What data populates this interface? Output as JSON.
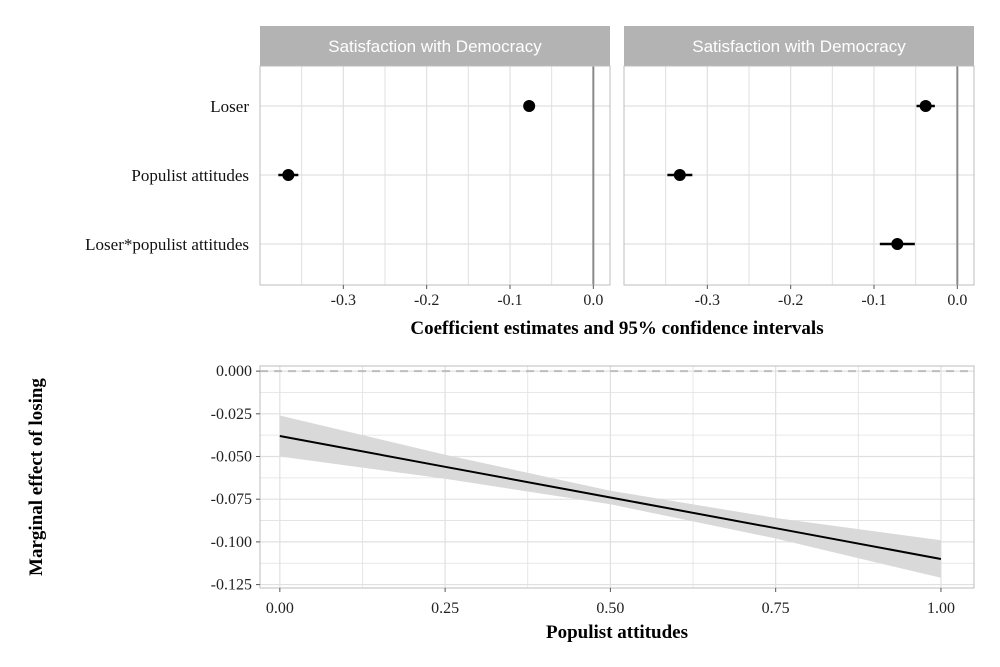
{
  "chart_data": [
    {
      "type": "scatter",
      "title": "Satisfaction with Democracy",
      "categories": [
        "Loser",
        "Populist attitudes",
        "Loser*populist attitudes"
      ],
      "series": [
        {
          "name": "panel-1",
          "estimates": [
            -0.077,
            -0.366,
            null
          ],
          "ci_low": [
            -0.081,
            -0.378,
            null
          ],
          "ci_high": [
            -0.073,
            -0.354,
            null
          ]
        }
      ],
      "xlim": [
        -0.4,
        0.02
      ],
      "xticks": [
        -0.3,
        -0.2,
        -0.1,
        0.0
      ],
      "xtick_labels": [
        "-0.3",
        "-0.2",
        "-0.1",
        "0.0"
      ],
      "reference_line": 0.0
    },
    {
      "type": "scatter",
      "title": "Satisfaction with Democracy",
      "categories": [
        "Loser",
        "Populist attitudes",
        "Loser*populist attitudes"
      ],
      "series": [
        {
          "name": "panel-2",
          "estimates": [
            -0.038,
            -0.333,
            -0.072
          ],
          "ci_low": [
            -0.049,
            -0.348,
            -0.093
          ],
          "ci_high": [
            -0.027,
            -0.318,
            -0.051
          ]
        }
      ],
      "xlim": [
        -0.4,
        0.02
      ],
      "xticks": [
        -0.3,
        -0.2,
        -0.1,
        0.0
      ],
      "xtick_labels": [
        "-0.3",
        "-0.2",
        "-0.1",
        "0.0"
      ],
      "reference_line": 0.0
    },
    {
      "type": "line",
      "title": "",
      "xlabel": "Populist attitudes",
      "ylabel": "Marginal effect of losing",
      "x": [
        0.0,
        0.25,
        0.5,
        0.75,
        1.0
      ],
      "y": [
        -0.038,
        -0.056,
        -0.074,
        -0.092,
        -0.11
      ],
      "ci_low": [
        -0.05,
        -0.063,
        -0.078,
        -0.098,
        -0.121
      ],
      "ci_high": [
        -0.026,
        -0.049,
        -0.07,
        -0.086,
        -0.099
      ],
      "xlim": [
        -0.03,
        1.05
      ],
      "ylim": [
        -0.127,
        0.003
      ],
      "xticks": [
        0.0,
        0.25,
        0.5,
        0.75,
        1.0
      ],
      "xtick_labels": [
        "0.00",
        "0.25",
        "0.50",
        "0.75",
        "1.00"
      ],
      "yticks": [
        0.0,
        -0.025,
        -0.05,
        -0.075,
        -0.1,
        -0.125
      ],
      "ytick_labels": [
        "0.000",
        "-0.025",
        "-0.050",
        "-0.075",
        "-0.100",
        "-0.125"
      ],
      "reference_line": 0.0
    }
  ],
  "shared_x_title": "Coefficient estimates and 95% confidence intervals",
  "colors": {
    "strip_bg": "#b3b3b3",
    "grid": "#e0e0e0",
    "frame": "#bdbdbd",
    "zero_line": "#8a8a8a",
    "point": "#000000",
    "ribbon": "#d9d9d9",
    "dashed": "#bdbdbd"
  }
}
